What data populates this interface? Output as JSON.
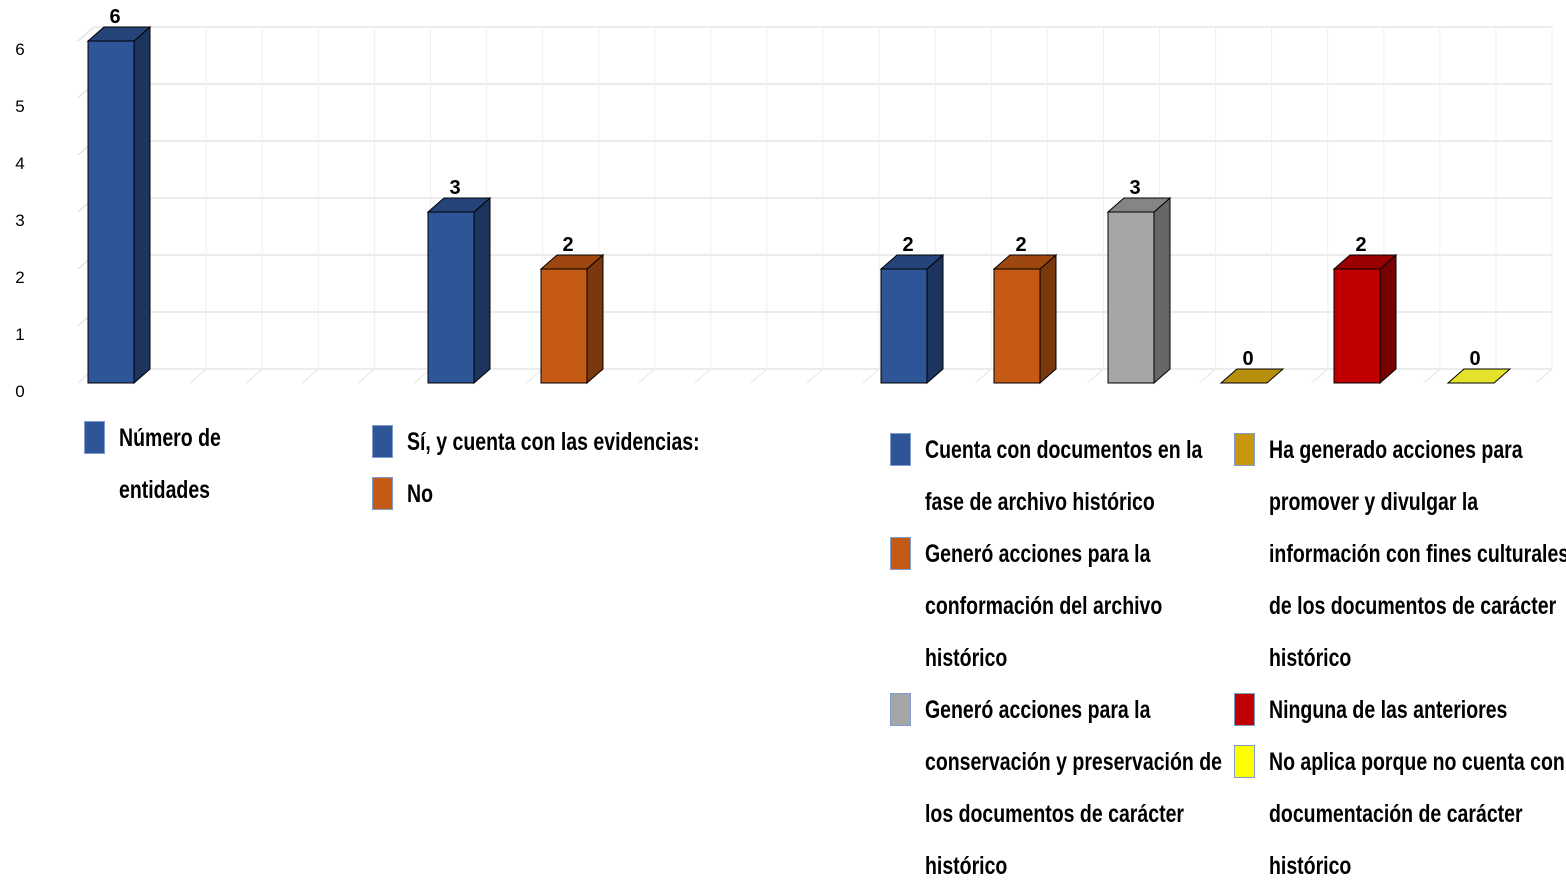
{
  "chart_data": {
    "type": "bar",
    "ylim": [
      0,
      6
    ],
    "yticks": [
      "0",
      "1",
      "2",
      "3",
      "4",
      "5",
      "6"
    ],
    "grid": true,
    "bars": [
      {
        "name": "Número de entidades",
        "value": 6,
        "label": "6",
        "color": "#2e5597"
      },
      {
        "name": "Sí, y cuenta con las evidencias:",
        "value": 3,
        "label": "3",
        "color": "#2e5597"
      },
      {
        "name": "No",
        "value": 2,
        "label": "2",
        "color": "#c55a14"
      },
      {
        "name": "Cuenta con documentos en la fase de archivo histórico",
        "value": 2,
        "label": "2",
        "color": "#2e5597"
      },
      {
        "name": "Generó acciones para la conformación del archivo histórico",
        "value": 2,
        "label": "2",
        "color": "#c55a14"
      },
      {
        "name": "Generó acciones para la conservación y preservación de los documentos de carácter histórico",
        "value": 3,
        "label": "3",
        "color": "#a6a6a6"
      },
      {
        "name": "Ha generado acciones para promover y divulgar la información con fines culturales, de los documentos de carácter histórico",
        "value": 0,
        "label": "0",
        "color": "#b8900e"
      },
      {
        "name": "Ninguna de las anteriores",
        "value": 2,
        "label": "2",
        "color": "#c00000"
      },
      {
        "name": "No aplica porque no cuenta con documentación de carácter histórico",
        "value": 0,
        "label": "0",
        "color": "#e5e22b"
      }
    ]
  },
  "legend": {
    "group1": [
      {
        "lines": [
          "Número de",
          "entidades"
        ],
        "color": "#2e5597"
      }
    ],
    "group2": [
      {
        "lines": [
          "Sí, y cuenta con las evidencias:"
        ],
        "color": "#2e5597"
      },
      {
        "lines": [
          "No"
        ],
        "color": "#c55a14"
      }
    ],
    "group3": [
      {
        "lines": [
          "Cuenta con documentos en la",
          "fase de archivo histórico"
        ],
        "color": "#2e5597"
      },
      {
        "lines": [
          "Generó acciones para la",
          "conformación del archivo",
          "histórico"
        ],
        "color": "#c55a14"
      },
      {
        "lines": [
          "Generó acciones para la",
          "conservación y preservación de",
          "los documentos de carácter",
          "histórico"
        ],
        "color": "#a6a6a6"
      }
    ],
    "group4": [
      {
        "lines": [
          "Ha generado acciones para",
          "promover y divulgar la",
          "información con fines culturales,",
          "de los documentos de carácter",
          "histórico"
        ],
        "color": "#c8960f"
      },
      {
        "lines": [
          "Ninguna de las anteriores"
        ],
        "color": "#c00000"
      },
      {
        "lines": [
          "No aplica porque no cuenta con",
          "documentación de carácter",
          "histórico"
        ],
        "color": "#ffff00"
      }
    ]
  }
}
